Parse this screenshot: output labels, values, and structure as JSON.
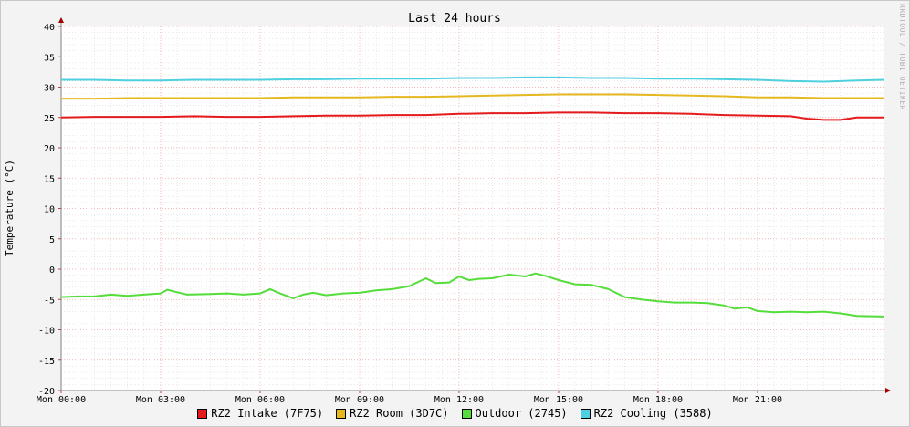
{
  "chart_data": {
    "type": "line",
    "title": "Last 24 hours",
    "xlabel": "",
    "ylabel": "Temperature (°C)",
    "ylim": [
      -20,
      40
    ],
    "xlim": [
      0,
      24.8
    ],
    "yticks": [
      40,
      35,
      30,
      25,
      20,
      15,
      10,
      5,
      0,
      -5,
      -10,
      -15,
      -20
    ],
    "xticks": [
      {
        "x": 0,
        "label": "Mon 00:00"
      },
      {
        "x": 3,
        "label": "Mon 03:00"
      },
      {
        "x": 6,
        "label": "Mon 06:00"
      },
      {
        "x": 9,
        "label": "Mon 09:00"
      },
      {
        "x": 12,
        "label": "Mon 12:00"
      },
      {
        "x": 15,
        "label": "Mon 15:00"
      },
      {
        "x": 18,
        "label": "Mon 18:00"
      },
      {
        "x": 21,
        "label": "Mon 21:00"
      }
    ],
    "grid": true,
    "legend_position": "bottom",
    "series": [
      {
        "name": "RZ2 Intake (7F75)",
        "color": "#e41a1c",
        "x": [
          0,
          1,
          2,
          3,
          4,
          5,
          6,
          7,
          8,
          9,
          10,
          11,
          12,
          13,
          14,
          15,
          16,
          17,
          18,
          19,
          20,
          21,
          22,
          22.5,
          23,
          23.5,
          24,
          24.8
        ],
        "y": [
          25.0,
          25.1,
          25.1,
          25.1,
          25.2,
          25.1,
          25.1,
          25.2,
          25.3,
          25.3,
          25.4,
          25.4,
          25.6,
          25.7,
          25.7,
          25.8,
          25.8,
          25.7,
          25.7,
          25.6,
          25.4,
          25.3,
          25.2,
          24.8,
          24.6,
          24.6,
          25.0,
          25.0
        ]
      },
      {
        "name": "RZ2 Room (3D7C)",
        "color": "#e6b820",
        "x": [
          0,
          1,
          2,
          3,
          4,
          5,
          6,
          7,
          8,
          9,
          10,
          11,
          12,
          13,
          14,
          15,
          16,
          17,
          18,
          19,
          20,
          21,
          22,
          23,
          24,
          24.8
        ],
        "y": [
          28.1,
          28.1,
          28.2,
          28.2,
          28.2,
          28.2,
          28.2,
          28.3,
          28.3,
          28.3,
          28.4,
          28.4,
          28.5,
          28.6,
          28.7,
          28.8,
          28.8,
          28.8,
          28.7,
          28.6,
          28.5,
          28.3,
          28.3,
          28.2,
          28.2,
          28.2
        ]
      },
      {
        "name": "Outdoor (2745)",
        "color": "#55dd3b",
        "x": [
          0,
          0.5,
          1,
          1.5,
          2,
          2.5,
          3,
          3.2,
          3.5,
          3.8,
          4.5,
          5,
          5.5,
          6,
          6.3,
          6.6,
          7,
          7.3,
          7.6,
          8,
          8.5,
          9,
          9.5,
          10,
          10.5,
          11,
          11.3,
          11.7,
          12,
          12.3,
          12.6,
          13,
          13.5,
          14,
          14.3,
          14.6,
          15,
          15.5,
          16,
          16.5,
          17,
          17.5,
          18,
          18.5,
          19,
          19.5,
          20,
          20.3,
          20.7,
          21,
          21.5,
          22,
          22.5,
          23,
          23.5,
          24,
          24.8
        ],
        "y": [
          -4.6,
          -4.5,
          -4.5,
          -4.2,
          -4.4,
          -4.2,
          -4.0,
          -3.4,
          -3.8,
          -4.2,
          -4.1,
          -4.0,
          -4.2,
          -4.0,
          -3.3,
          -4.0,
          -4.8,
          -4.2,
          -3.9,
          -4.3,
          -4.0,
          -3.9,
          -3.5,
          -3.3,
          -2.8,
          -1.5,
          -2.3,
          -2.2,
          -1.2,
          -1.8,
          -1.6,
          -1.5,
          -0.9,
          -1.2,
          -0.7,
          -1.1,
          -1.8,
          -2.5,
          -2.6,
          -3.3,
          -4.6,
          -5.0,
          -5.3,
          -5.5,
          -5.5,
          -5.6,
          -6.0,
          -6.5,
          -6.3,
          -6.9,
          -7.1,
          -7.0,
          -7.1,
          -7.0,
          -7.3,
          -7.7,
          -7.8
        ]
      },
      {
        "name": "RZ2 Cooling (3588)",
        "color": "#4fd0e0",
        "x": [
          0,
          1,
          2,
          3,
          4,
          5,
          6,
          7,
          8,
          9,
          10,
          11,
          12,
          13,
          14,
          15,
          16,
          17,
          18,
          19,
          20,
          21,
          22,
          23,
          24,
          24.8
        ],
        "y": [
          31.2,
          31.2,
          31.1,
          31.1,
          31.2,
          31.2,
          31.2,
          31.3,
          31.3,
          31.4,
          31.4,
          31.4,
          31.5,
          31.5,
          31.6,
          31.6,
          31.5,
          31.5,
          31.4,
          31.4,
          31.3,
          31.2,
          31.0,
          30.9,
          31.1,
          31.2
        ]
      }
    ]
  },
  "watermark": "RRDTOOL / TOBI OETIKER"
}
